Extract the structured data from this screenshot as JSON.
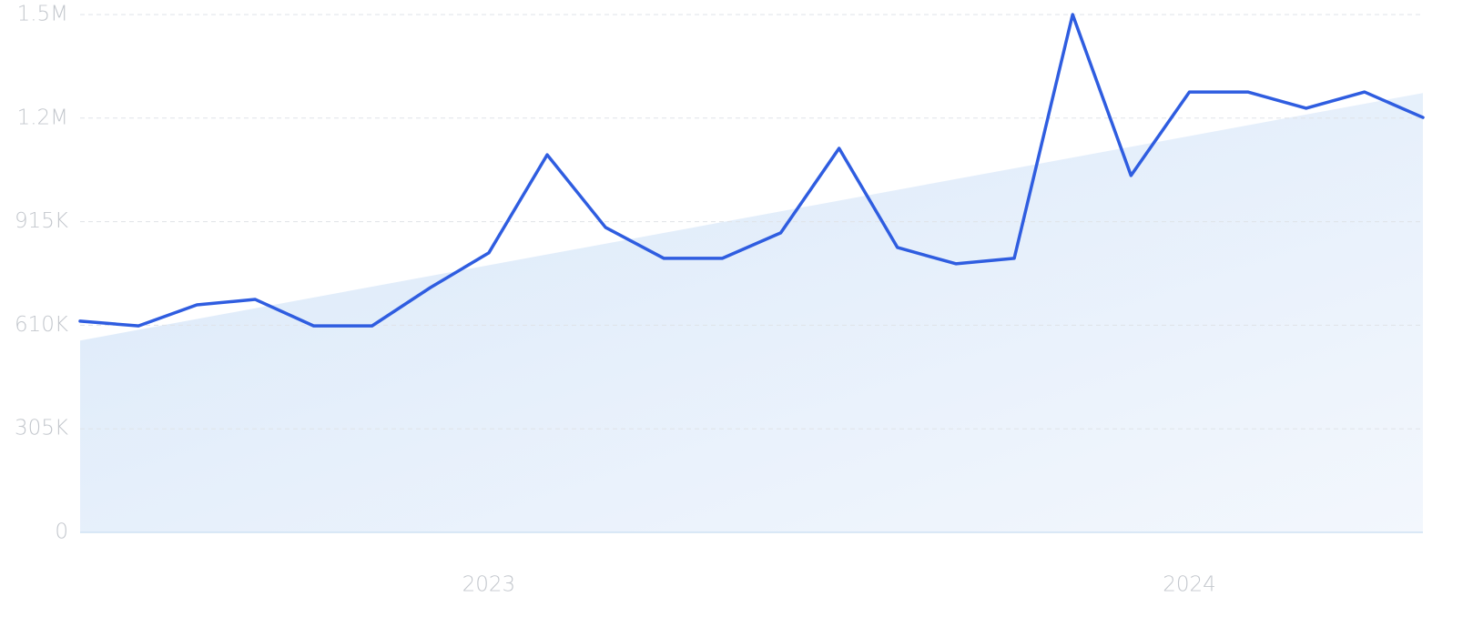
{
  "chart_data": {
    "type": "line",
    "categories": [
      null,
      null,
      null,
      null,
      null,
      null,
      null,
      "2023",
      null,
      null,
      null,
      null,
      null,
      null,
      null,
      null,
      null,
      null,
      null,
      "2024",
      null,
      null,
      null,
      null
    ],
    "values": [
      622000,
      608000,
      670000,
      686000,
      608000,
      608000,
      721000,
      823000,
      1112000,
      898000,
      807000,
      807000,
      882000,
      1131000,
      839000,
      791000,
      807000,
      1525000,
      1051000,
      1297000,
      1297000,
      1249000,
      1297000,
      1222000
    ],
    "color": "#2f5de0",
    "trend": [
      565000,
      1294000
    ],
    "ylim": [
      0,
      1525000
    ],
    "yticks": [
      0,
      {
        "value": 305000,
        "label": "305K"
      },
      {
        "value": 610000,
        "label": "610K"
      },
      {
        "value": 915000,
        "label": "915K"
      },
      {
        "value": 1220000,
        "label": "1.2M"
      },
      {
        "value": 1525000,
        "label": "1.5M"
      }
    ],
    "grid": true
  }
}
